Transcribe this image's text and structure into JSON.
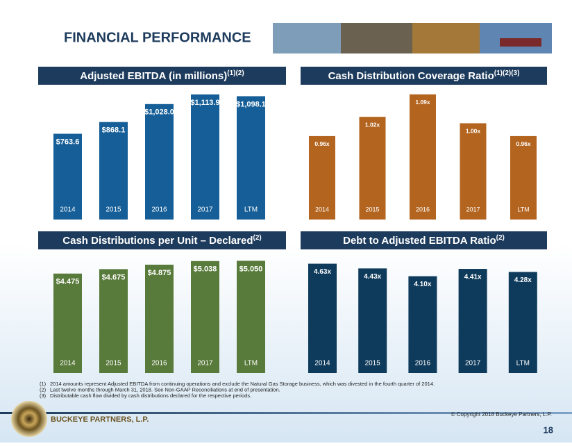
{
  "title": "FINANCIAL PERFORMANCE",
  "chart_data": [
    {
      "type": "bar",
      "title": "Adjusted EBITDA (in millions)",
      "title_note": "(1)(2)",
      "categories": [
        "2014",
        "2015",
        "2016",
        "2017",
        "LTM"
      ],
      "values": [
        763.6,
        868.1,
        1028.0,
        1113.9,
        1098.1
      ],
      "value_labels": [
        "$763.6",
        "$868.1",
        "$1,028.0",
        "$1,113.9",
        "$1,098.1"
      ],
      "color": "#155e97",
      "ylim": [
        0,
        1200
      ]
    },
    {
      "type": "bar",
      "title": "Cash Distribution Coverage Ratio",
      "title_note": "(1)(2)(3)",
      "categories": [
        "2014",
        "2015",
        "2016",
        "2017",
        "LTM"
      ],
      "values": [
        0.96,
        1.02,
        1.09,
        1.0,
        0.96
      ],
      "value_labels": [
        "0.96x",
        "1.02x",
        "1.09x",
        "1.00x",
        "0.96x"
      ],
      "color": "#b3641f",
      "ylim": [
        0.7,
        1.12
      ]
    },
    {
      "type": "bar",
      "title": "Cash Distributions per Unit – Declared",
      "title_note": "(2)",
      "categories": [
        "2014",
        "2015",
        "2016",
        "2017",
        "LTM"
      ],
      "values": [
        4.475,
        4.675,
        4.875,
        5.038,
        5.05
      ],
      "value_labels": [
        "$4.475",
        "$4.675",
        "$4.875",
        "$5.038",
        "$5.050"
      ],
      "color": "#587a3a",
      "ylim": [
        0,
        5.5
      ]
    },
    {
      "type": "bar",
      "title": "Debt to Adjusted EBITDA Ratio",
      "title_note": "(2)",
      "categories": [
        "2014",
        "2015",
        "2016",
        "2017",
        "LTM"
      ],
      "values": [
        4.63,
        4.43,
        4.1,
        4.41,
        4.28
      ],
      "value_labels": [
        "4.63x",
        "4.43x",
        "4.10x",
        "4.41x",
        "4.28x"
      ],
      "color": "#0e3a5b",
      "ylim": [
        0,
        5
      ]
    }
  ],
  "footnotes": [
    {
      "marker": "(1)",
      "text": "2014 amounts represent Adjusted EBITDA from continuing operations and exclude the Natural Gas Storage business, which was divested in the fourth quarter of 2014."
    },
    {
      "marker": "(2)",
      "text": "Last twelve months through March 31, 2018.  See Non-GAAP Reconciliations at end of presentation."
    },
    {
      "marker": "(3)",
      "text": "Distributable cash flow divided by cash distributions declared for the respective periods."
    }
  ],
  "company": "BUCKEYE PARTNERS, L.P.",
  "copyright": "© Copyright 2018 Buckeye Partners, L.P.",
  "page": 18
}
